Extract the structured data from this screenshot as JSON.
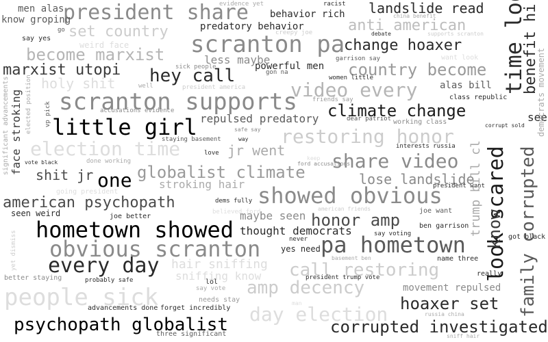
{
  "cloud": {
    "words": [
      {
        "text": "president share",
        "color": "#8a8a8a"
      },
      {
        "text": "scranton pa",
        "color": "#8a8a8a"
      },
      {
        "text": "change hoaxer",
        "color": "#2a2a2a"
      },
      {
        "text": "landslide read",
        "color": "#2a2a2a"
      },
      {
        "text": "anti american",
        "color": "#bdbdbd"
      },
      {
        "text": "set country",
        "color": "#cccccc"
      },
      {
        "text": "become marxist",
        "color": "#b5b5b5"
      },
      {
        "text": "marxist utopi",
        "color": "#3a3a3a"
      },
      {
        "text": "hey call",
        "color": "#2a2a2a"
      },
      {
        "text": "country become",
        "color": "#9a9a9a"
      },
      {
        "text": "scranton supports",
        "color": "#8a8a8a"
      },
      {
        "text": "video every",
        "color": "#b5b5b5"
      },
      {
        "text": "climate change",
        "color": "#1a1a1a"
      },
      {
        "text": "little girl",
        "color": "#000000"
      },
      {
        "text": "election time",
        "color": "#dddddd"
      },
      {
        "text": "restoring honor",
        "color": "#cccccc"
      },
      {
        "text": "share video",
        "color": "#8a8a8a"
      },
      {
        "text": "globalist climate",
        "color": "#9a9a9a"
      },
      {
        "text": "one",
        "color": "#000000"
      },
      {
        "text": "shit jr",
        "color": "#4a4a4a"
      },
      {
        "text": "lose landslide",
        "color": "#8a8a8a"
      },
      {
        "text": "american psychopath",
        "color": "#4a4a4a"
      },
      {
        "text": "showed obvious",
        "color": "#8a8a8a"
      },
      {
        "text": "hometown showed",
        "color": "#000000"
      },
      {
        "text": "honor amp",
        "color": "#4a4a4a"
      },
      {
        "text": "pa hometown",
        "color": "#5a5a5a"
      },
      {
        "text": "obvious scranton",
        "color": "#8a8a8a"
      },
      {
        "text": "every day",
        "color": "#2a2a2a"
      },
      {
        "text": "call restoring",
        "color": "#cccccc"
      },
      {
        "text": "people sick",
        "color": "#dddddd"
      },
      {
        "text": "amp decency",
        "color": "#cccccc"
      },
      {
        "text": "hoaxer set",
        "color": "#2a2a2a"
      },
      {
        "text": "day election",
        "color": "#dddddd"
      },
      {
        "text": "psychopath globalist",
        "color": "#000000"
      },
      {
        "text": "corrupted investigated",
        "color": "#2a2a2a"
      },
      {
        "text": "jr went",
        "color": "#aaaaaa"
      },
      {
        "text": "holy shit",
        "color": "#dddddd"
      },
      {
        "text": "hair sniffing",
        "color": "#dddddd"
      },
      {
        "text": "sniffing know",
        "color": "#dddddd"
      },
      {
        "text": "less maybe",
        "color": "#8a8a8a"
      },
      {
        "text": "powerful men",
        "color": "#2a2a2a"
      },
      {
        "text": "repulsed predatory",
        "color": "#5a5a5a"
      },
      {
        "text": "stroking hair",
        "color": "#aaaaaa"
      },
      {
        "text": "maybe seen",
        "color": "#8a8a8a"
      },
      {
        "text": "thought democrats",
        "color": "#2a2a2a"
      },
      {
        "text": "movement repulsed",
        "color": "#8a8a8a"
      },
      {
        "text": "alas bill",
        "color": "#5a5a5a"
      },
      {
        "text": "predatory behavior",
        "color": "#2a2a2a"
      },
      {
        "text": "behavior rich",
        "color": "#2a2a2a"
      },
      {
        "text": "men alas",
        "color": "#5a5a5a"
      },
      {
        "text": "know groping",
        "color": "#5a5a5a"
      },
      {
        "text": "weird face",
        "color": "#dddddd"
      },
      {
        "text": "seen weird",
        "color": "#2a2a2a"
      },
      {
        "text": "joe better",
        "color": "#2a2a2a"
      },
      {
        "text": "yes need",
        "color": "#2a2a2a"
      },
      {
        "text": "see",
        "color": "#2a2a2a"
      },
      {
        "text": "name three",
        "color": "#2a2a2a"
      },
      {
        "text": "really",
        "color": "#2a2a2a"
      },
      {
        "text": "lol",
        "color": "#2a2a2a"
      },
      {
        "text": "needs stay",
        "color": "#9a9a9a"
      },
      {
        "text": "forget incredibly",
        "color": "#2a2a2a"
      },
      {
        "text": "three significant",
        "color": "#5a5a5a"
      },
      {
        "text": "advancements done",
        "color": "#2a2a2a"
      },
      {
        "text": "probably safe",
        "color": "#2a2a2a"
      },
      {
        "text": "better staying",
        "color": "#8a8a8a"
      },
      {
        "text": "president trump vote",
        "color": "#2a2a2a"
      },
      {
        "text": "dems fully",
        "color": "#2a2a2a"
      },
      {
        "text": "ben garrison",
        "color": "#2a2a2a"
      },
      {
        "text": "got black",
        "color": "#2a2a2a"
      },
      {
        "text": "say voting",
        "color": "#2a2a2a"
      },
      {
        "text": "never",
        "color": "#2a2a2a"
      },
      {
        "text": "joe want",
        "color": "#5a5a5a"
      },
      {
        "text": "president want",
        "color": "#2a2a2a"
      },
      {
        "text": "interests russia",
        "color": "#2a2a2a"
      },
      {
        "text": "working class",
        "color": "#8a8a8a"
      },
      {
        "text": "dear patriot",
        "color": "#5a5a5a"
      },
      {
        "text": "class republic",
        "color": "#2a2a2a"
      },
      {
        "text": "corrupt sold",
        "color": "#2a2a2a"
      },
      {
        "text": "women little",
        "color": "#2a2a2a"
      },
      {
        "text": "friends say",
        "color": "#9a9a9a"
      },
      {
        "text": "garrison say",
        "color": "#5a5a5a"
      },
      {
        "text": "gon na",
        "color": "#5a5a5a"
      },
      {
        "text": "sick people",
        "color": "#8a8a8a"
      },
      {
        "text": "president america",
        "color": "#cccccc"
      },
      {
        "text": "well",
        "color": "#aaaaaa"
      },
      {
        "text": "accusations evidence",
        "color": "#8a8a8a"
      },
      {
        "text": "staying basement",
        "color": "#5a5a5a"
      },
      {
        "text": "safe say",
        "color": "#8a8a8a"
      },
      {
        "text": "way",
        "color": "#2a2a2a"
      },
      {
        "text": "love",
        "color": "#2a2a2a"
      },
      {
        "text": "done working",
        "color": "#aaaaaa"
      },
      {
        "text": "vote black",
        "color": "#2a2a2a"
      },
      {
        "text": "going president",
        "color": "#dddddd"
      },
      {
        "text": "ford accusations",
        "color": "#8a8a8a"
      },
      {
        "text": "keep",
        "color": "#dddddd"
      },
      {
        "text": "racist",
        "color": "#2a2a2a"
      },
      {
        "text": "evidence yet",
        "color": "#aaaaaa"
      },
      {
        "text": "china benefit",
        "color": "#aaaaaa"
      },
      {
        "text": "debate",
        "color": "#2a2a2a"
      },
      {
        "text": "supports scranton",
        "color": "#cccccc"
      },
      {
        "text": "creepy joe",
        "color": "#cccccc"
      },
      {
        "text": "go",
        "color": "#5a5a5a"
      },
      {
        "text": "say yes",
        "color": "#2a2a2a"
      },
      {
        "text": "believed ford",
        "color": "#dddddd"
      },
      {
        "text": "american friends",
        "color": "#cccccc"
      },
      {
        "text": "basement ben",
        "color": "#aaaaaa"
      },
      {
        "text": "say vote",
        "color": "#aaaaaa"
      },
      {
        "text": "man",
        "color": "#dddddd"
      },
      {
        "text": "russia china",
        "color": "#aaaaaa"
      },
      {
        "text": "sniff hair",
        "color": "#aaaaaa"
      },
      {
        "text": "want look",
        "color": "#dddddd"
      },
      {
        "text": "time look",
        "color": "#2a2a2a"
      },
      {
        "text": "benefit hi",
        "color": "#2a2a2a"
      },
      {
        "text": "family corrupted",
        "color": "#5a5a5a"
      },
      {
        "text": "look scared",
        "color": "#1a1a1a"
      },
      {
        "text": "know",
        "color": "#3a3a3a"
      },
      {
        "text": "trump bill cl",
        "color": "#aaaaaa"
      },
      {
        "text": "democrats movement",
        "color": "#aaaaaa"
      },
      {
        "text": "face stroking",
        "color": "#3a3a3a"
      },
      {
        "text": "significant advancements",
        "color": "#aaaaaa"
      },
      {
        "text": "elected position",
        "color": "#aaaaaa"
      },
      {
        "text": "vp pick",
        "color": "#5a5a5a"
      },
      {
        "text": "yet dismiss",
        "color": "#cccccc"
      }
    ]
  }
}
